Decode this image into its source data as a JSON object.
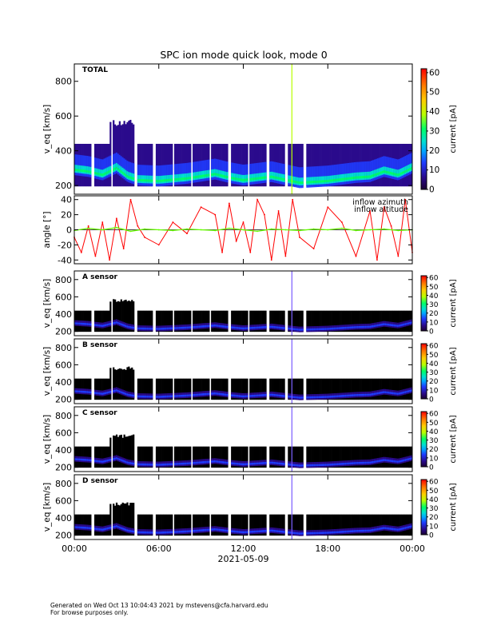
{
  "title": "SPC ion mode quick look, mode 0",
  "footer": {
    "line1": "Generated on Wed Oct 13 10:04:43 2021 by mstevens@cfa.harvard.edu",
    "line2": "For browse purposes only."
  },
  "colors": {
    "spectrogram_background": "#000000",
    "gap": "#ffffff",
    "colormap": [
      "#1a0033",
      "#2a0a8c",
      "#1f3cff",
      "#00a8ff",
      "#00e0d0",
      "#00ff66",
      "#b8ff00",
      "#ffcc00",
      "#ff7a00",
      "#ff0000"
    ]
  },
  "chart_data": {
    "type": "heatmap",
    "x_tick_labels": [
      "00:00",
      "06:00",
      "12:00",
      "18:00",
      "00:00"
    ],
    "x_ticks_hours": [
      0,
      6,
      12,
      18,
      24
    ],
    "x_range_hours": [
      0,
      24
    ],
    "date_label": "2021-05-09",
    "data_gaps_hours": [
      [
        1.2,
        1.45
      ],
      [
        2.6,
        2.75
      ],
      [
        4.3,
        4.45
      ],
      [
        5.6,
        5.75
      ],
      [
        6.95,
        7.1
      ],
      [
        8.3,
        8.45
      ],
      [
        9.6,
        9.75
      ],
      [
        10.95,
        11.1
      ],
      [
        12.3,
        12.45
      ],
      [
        13.65,
        13.8
      ],
      [
        15.0,
        15.15
      ],
      [
        16.3,
        16.45
      ]
    ],
    "velocity_profile": {
      "hours": [
        0,
        1,
        2,
        3,
        3.8,
        4.5,
        6,
        8,
        10,
        11,
        12,
        13,
        14,
        16,
        18,
        20,
        21,
        22,
        23,
        24
      ],
      "peak_velocity_kms": [
        290,
        280,
        260,
        300,
        250,
        230,
        225,
        240,
        265,
        245,
        230,
        240,
        250,
        215,
        225,
        245,
        250,
        280,
        260,
        300
      ]
    },
    "spectrograms": [
      {
        "label": "TOTAL",
        "ylabel": "v_eq [km/s]",
        "ylim": [
          150,
          900
        ],
        "y_ticks": [
          200,
          400,
          600,
          800
        ],
        "colorbar": {
          "label": "current [pA]",
          "range": [
            0,
            62
          ],
          "ticks": [
            0,
            10,
            20,
            30,
            40,
            50,
            60
          ]
        }
      },
      {
        "label": "A sensor",
        "ylabel": "v_eq [km/s]",
        "ylim": [
          150,
          900
        ],
        "y_ticks": [
          200,
          400,
          600,
          800
        ],
        "colorbar": {
          "label": "current [pA]",
          "range": [
            0,
            62
          ],
          "ticks": [
            0,
            10,
            20,
            30,
            40,
            50,
            60
          ]
        }
      },
      {
        "label": "B sensor",
        "ylabel": "v_eq [km/s]",
        "ylim": [
          150,
          900
        ],
        "y_ticks": [
          200,
          400,
          600,
          800
        ],
        "colorbar": {
          "label": "current [pA]",
          "range": [
            0,
            62
          ],
          "ticks": [
            0,
            10,
            20,
            30,
            40,
            50,
            60
          ]
        }
      },
      {
        "label": "C sensor",
        "ylabel": "v_eq [km/s]",
        "ylim": [
          150,
          900
        ],
        "y_ticks": [
          200,
          400,
          600,
          800
        ],
        "colorbar": {
          "label": "current [pA]",
          "range": [
            0,
            62
          ],
          "ticks": [
            0,
            10,
            20,
            30,
            40,
            50,
            60
          ]
        }
      },
      {
        "label": "D sensor",
        "ylabel": "v_eq [km/s]",
        "ylim": [
          150,
          900
        ],
        "y_ticks": [
          200,
          400,
          600,
          800
        ],
        "colorbar": {
          "label": "current [pA]",
          "range": [
            0,
            62
          ],
          "ticks": [
            0,
            10,
            20,
            30,
            40,
            50,
            60
          ]
        }
      }
    ],
    "angle_panel": {
      "type": "line",
      "ylabel": "angle [°]",
      "ylim": [
        -45,
        45
      ],
      "y_ticks": [
        -40,
        -20,
        0,
        20,
        40
      ],
      "series": [
        {
          "name": "inflow azimuth",
          "color": "#ff0000",
          "x": [
            0,
            0.5,
            1.0,
            1.5,
            2.0,
            2.5,
            3.0,
            3.5,
            4.0,
            4.5,
            5.0,
            6.0,
            7.0,
            8.0,
            9.0,
            10.0,
            10.5,
            11.0,
            11.5,
            12.0,
            12.5,
            13.0,
            13.5,
            14.0,
            14.5,
            15.0,
            15.5,
            16.0,
            17.0,
            18.0,
            19.0,
            20.0,
            21.0,
            21.5,
            22.0,
            22.5,
            23.0,
            23.5,
            24.0
          ],
          "y": [
            -10,
            -30,
            5,
            -35,
            10,
            -40,
            15,
            -25,
            40,
            5,
            -10,
            -20,
            10,
            -5,
            30,
            20,
            -30,
            35,
            -15,
            10,
            -30,
            40,
            20,
            -40,
            25,
            -35,
            40,
            -10,
            -25,
            30,
            10,
            -35,
            25,
            -40,
            30,
            5,
            -35,
            40,
            -30
          ]
        },
        {
          "name": "inflow altitude",
          "color": "#66ff00",
          "x": [
            0,
            1,
            2,
            3,
            4,
            5,
            6,
            7,
            8,
            9,
            10,
            11,
            12,
            13,
            14,
            15,
            16,
            17,
            18,
            19,
            20,
            21,
            22,
            23,
            24
          ],
          "y": [
            -1,
            2,
            0,
            3,
            -2,
            1,
            0,
            -1,
            1,
            0,
            -1,
            2,
            0,
            -2,
            1,
            0,
            -1,
            1,
            0,
            2,
            -1,
            0,
            1,
            -1,
            0
          ]
        }
      ]
    }
  }
}
